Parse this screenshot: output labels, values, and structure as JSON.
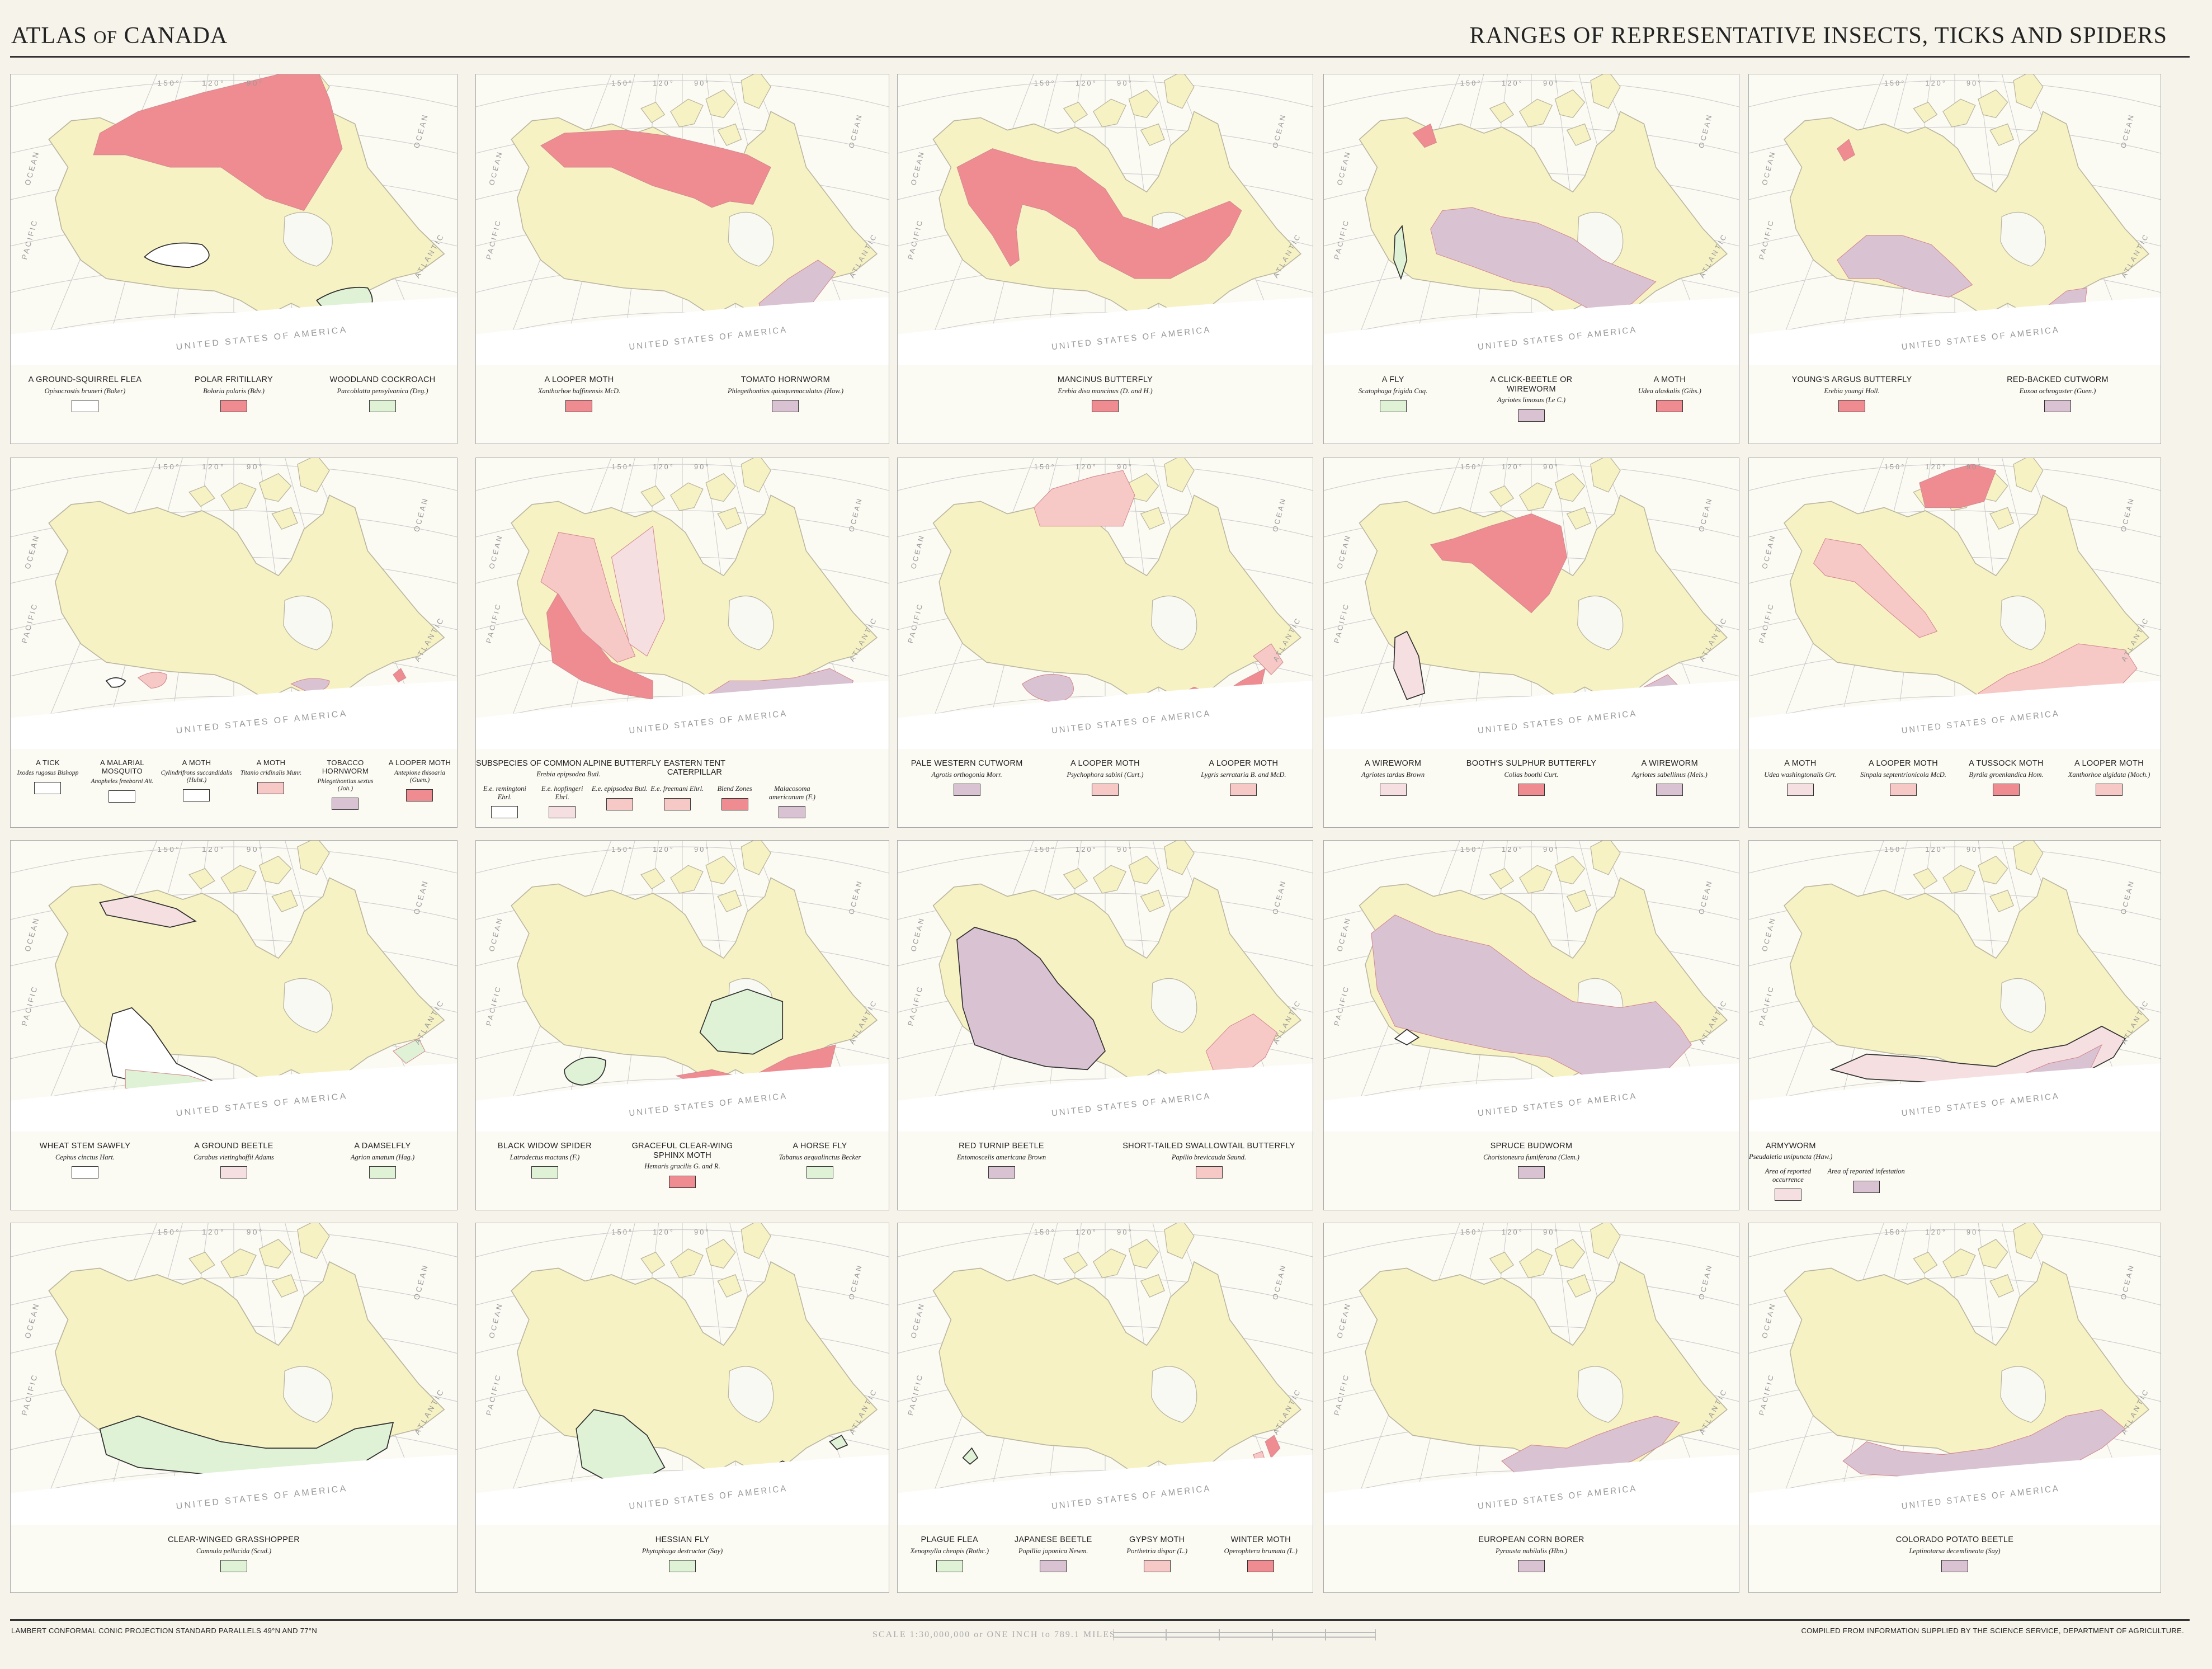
{
  "header": {
    "atlas_title_a": "ATLAS",
    "atlas_title_b": "OF",
    "atlas_title_c": "CANADA",
    "sheet_title": "RANGES OF REPRESENTATIVE INSECTS, TICKS AND SPIDERS"
  },
  "map_labels": {
    "ocean": "OCEAN",
    "pacific": "PACIFIC",
    "atlantic": "ATLANTIC",
    "usa": "UNITED STATES OF AMERICA",
    "lon1": "150°",
    "lon2": "120°",
    "lon3": "90°",
    "lon4": "60°"
  },
  "colors": {
    "white": "#ffffff",
    "red": "#ef8c92",
    "green": "#dff2d5",
    "mauve": "#d9c3d3",
    "pink": "#f6c8c6",
    "pale_pink": "#f5dfe1",
    "land": "#f7f2c4",
    "water": "#f9f9f4"
  },
  "panels": [
    {
      "legend": [
        {
          "common": "A GROUND-SQUIRREL FLEA",
          "sci": "Opisocrostis bruneri (Baker)",
          "color": "white"
        },
        {
          "common": "POLAR FRITILLARY",
          "sci": "Boloria polaris (Bdv.)",
          "color": "red"
        },
        {
          "common": "WOODLAND COCKROACH",
          "sci": "Parcoblatta pensylvanica (Deg.)",
          "color": "green"
        }
      ]
    },
    {
      "legend": [
        {
          "common": "A LOOPER MOTH",
          "sci": "Xanthorhoe baffinensis McD.",
          "color": "red"
        },
        {
          "common": "TOMATO HORNWORM",
          "sci": "Phlegethontius quinquemaculatus (Haw.)",
          "color": "mauve"
        }
      ]
    },
    {
      "legend": [
        {
          "common": "MANCINUS BUTTERFLY",
          "sci": "Erebia disa mancinus (D. and H.)",
          "color": "red"
        }
      ]
    },
    {
      "legend": [
        {
          "common": "A FLY",
          "sci": "Scatophaga frigida Coq.",
          "color": "green"
        },
        {
          "common": "A CLICK-BEETLE OR WIREWORM",
          "sci": "Agriotes limosus (Le C.)",
          "color": "mauve"
        },
        {
          "common": "A MOTH",
          "sci": "Udea alaskalis (Gibs.)",
          "color": "red"
        }
      ]
    },
    {
      "legend": [
        {
          "common": "YOUNG'S ARGUS BUTTERFLY",
          "sci": "Erebia youngi Holl.",
          "color": "red"
        },
        {
          "common": "RED-BACKED CUTWORM",
          "sci": "Euxoa ochrogaster (Guen.)",
          "color": "mauve"
        }
      ]
    },
    {
      "legend": [
        {
          "common": "A TICK",
          "sci": "Ixodes rugosus Bishopp",
          "color": "white"
        },
        {
          "common": "A MALARIAL MOSQUITO",
          "sci": "Anopheles freeborni Ait.",
          "color": "white"
        },
        {
          "common": "A MOTH",
          "sci": "Cylindrifrons succandidalis (Hulst.)",
          "color": "white"
        },
        {
          "common": "A MOTH",
          "sci": "Titanio cridinalis Munr.",
          "color": "pink"
        },
        {
          "common": "TOBACCO HORNWORM",
          "sci": "Phlegethontius sextus (Joh.)",
          "color": "mauve"
        },
        {
          "common": "A LOOPER MOTH",
          "sci": "Antepione thisoaria (Guen.)",
          "color": "red"
        }
      ]
    },
    {
      "group": "SUBSPECIES OF COMMON ALPINE BUTTERFLY",
      "group_sci": "Erebia epipsodea Butl.",
      "group2": "EASTERN TENT CATERPILLAR",
      "legend": [
        {
          "common": "",
          "sci": "E.e. remingtoni Ehrl.",
          "color": "white"
        },
        {
          "common": "",
          "sci": "E.e. hopfingeri Ehrl.",
          "color": "pale_pink"
        },
        {
          "common": "",
          "sci": "E.e. epipsodea Butl.",
          "color": "pink"
        },
        {
          "common": "",
          "sci": "E.e. freemani Ehrl.",
          "color": "pink"
        },
        {
          "common": "",
          "sci": "Blend Zones",
          "color": "red"
        },
        {
          "common": "",
          "sci": "Malacosoma americanum (F.)",
          "color": "mauve"
        }
      ]
    },
    {
      "legend": [
        {
          "common": "PALE WESTERN CUTWORM",
          "sci": "Agrotis orthogonia Morr.",
          "color": "mauve"
        },
        {
          "common": "A LOOPER MOTH",
          "sci": "Psychophora sabini (Curt.)",
          "color": "pink"
        },
        {
          "common": "A LOOPER MOTH",
          "sci": "Lygris serrataria B. and McD.",
          "color": "pink"
        }
      ]
    },
    {
      "legend": [
        {
          "common": "A WIREWORM",
          "sci": "Agriotes tardus Brown",
          "color": "pale_pink"
        },
        {
          "common": "BOOTH'S SULPHUR BUTTERFLY",
          "sci": "Colias boothi Curt.",
          "color": "red"
        },
        {
          "common": "A WIREWORM",
          "sci": "Agriotes sabellinus (Mels.)",
          "color": "mauve"
        }
      ]
    },
    {
      "legend": [
        {
          "common": "A MOTH",
          "sci": "Udea washingtonalis Grt.",
          "color": "pale_pink"
        },
        {
          "common": "A LOOPER MOTH",
          "sci": "Sinpala septentrionicola McD.",
          "color": "pink"
        },
        {
          "common": "A TUSSOCK MOTH",
          "sci": "Byrdia groenlandica Hom.",
          "color": "red"
        },
        {
          "common": "A LOOPER MOTH",
          "sci": "Xanthorhoe algidata (Moch.)",
          "color": "pink"
        }
      ]
    },
    {
      "legend": [
        {
          "common": "WHEAT STEM SAWFLY",
          "sci": "Cephus cinctus Hart.",
          "color": "white"
        },
        {
          "common": "A GROUND BEETLE",
          "sci": "Carabus vietinghoffii Adams",
          "color": "pale_pink"
        },
        {
          "common": "A DAMSELFLY",
          "sci": "Agrion amatum (Hag.)",
          "color": "green"
        }
      ]
    },
    {
      "legend": [
        {
          "common": "BLACK WIDOW SPIDER",
          "sci": "Latrodectus mactans (F.)",
          "color": "green"
        },
        {
          "common": "GRACEFUL CLEAR-WING SPHINX MOTH",
          "sci": "Hemaris gracilis G. and R.",
          "color": "red"
        },
        {
          "common": "A HORSE FLY",
          "sci": "Tabanus aequalinctus Becker",
          "color": "green"
        }
      ]
    },
    {
      "legend": [
        {
          "common": "RED TURNIP BEETLE",
          "sci": "Entomoscelis americana Brown",
          "color": "mauve"
        },
        {
          "common": "SHORT-TAILED SWALLOWTAIL BUTTERFLY",
          "sci": "Papilio brevicauda Saund.",
          "color": "pink"
        }
      ]
    },
    {
      "legend": [
        {
          "common": "SPRUCE BUDWORM",
          "sci": "Choristoneura fumiferana (Clem.)",
          "color": "mauve"
        }
      ]
    },
    {
      "group": "ARMYWORM",
      "group_sci": "Pseudaletia unipuncta (Haw.)",
      "legend": [
        {
          "common": "",
          "sci": "Area of reported occurrence",
          "color": "pale_pink"
        },
        {
          "common": "",
          "sci": "Area of reported infestation",
          "color": "mauve"
        }
      ]
    },
    {
      "legend": [
        {
          "common": "CLEAR-WINGED GRASSHOPPER",
          "sci": "Camnula pellucida (Scud.)",
          "color": "green"
        }
      ]
    },
    {
      "legend": [
        {
          "common": "HESSIAN FLY",
          "sci": "Phytophaga destructor (Say)",
          "color": "green"
        }
      ]
    },
    {
      "legend": [
        {
          "common": "PLAGUE FLEA",
          "sci": "Xenopsylla cheopis (Rothc.)",
          "color": "green"
        },
        {
          "common": "JAPANESE BEETLE",
          "sci": "Popillia japonica Newm.",
          "color": "mauve"
        },
        {
          "common": "GYPSY MOTH",
          "sci": "Porthetria dispar (L.)",
          "color": "pink"
        },
        {
          "common": "WINTER MOTH",
          "sci": "Operophtera brumata (L.)",
          "color": "red"
        }
      ]
    },
    {
      "legend": [
        {
          "common": "EUROPEAN CORN BORER",
          "sci": "Pyrausta nubilalis (Hbn.)",
          "color": "mauve"
        }
      ]
    },
    {
      "legend": [
        {
          "common": "COLORADO POTATO BEETLE",
          "sci": "Leptinotarsa decemlineata (Say)",
          "color": "mauve"
        }
      ]
    }
  ],
  "footer": {
    "projection": "LAMBERT CONFORMAL CONIC PROJECTION STANDARD PARALLELS 49°N AND 77°N",
    "scale": "SCALE 1:30,000,000 or ONE INCH to 789.1 MILES",
    "credit": "COMPILED FROM INFORMATION SUPPLIED BY THE SCIENCE SERVICE, DEPARTMENT OF AGRICULTURE."
  }
}
